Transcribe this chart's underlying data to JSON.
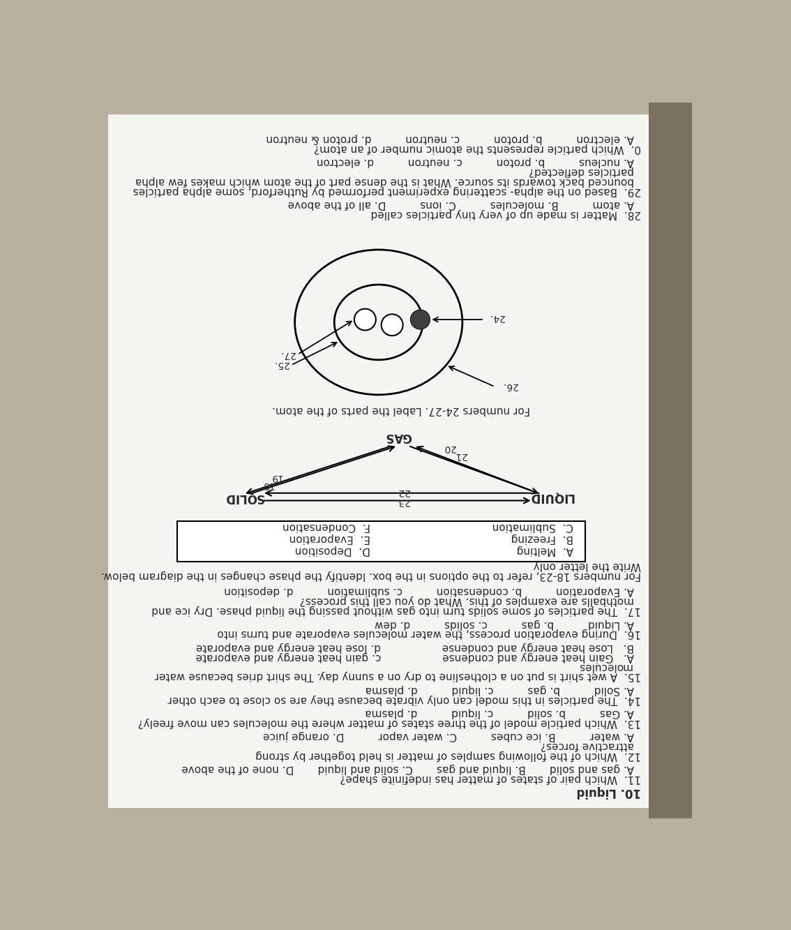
{
  "bg_color": "#b8b0a0",
  "page_color": "#f5f5f3",
  "shadow_color": "#7a7060",
  "text_color": "#2a2a2a",
  "title": "10. Liquid",
  "q11": "11.  Which pair of states of matter has indefinite shape?",
  "q11c": "A. gas and solid       B. liquid and gas       C. solid and liquid       D. none of the above",
  "q12a": "12.  Which of the following samples of matter is held together by strong",
  "q12b": "attractive forces?",
  "q12c": "A. water          B. ice cubes          C. water vapor          D. orange juice",
  "q13": "13.  Which particle model of the three states of matter where the molecules can move freely?",
  "q13c": "A. Gas          b. solid          c. liquid          d. plasma",
  "q14": "14.  The particles in this model can only vibrate because they are so close to each other",
  "q14c": "A. Solid          b. gas          c. liquid          d. plasma",
  "q15a": "15.  A wet shirt is put on a clothesline to dry on a sunny day. The shirt dries because water",
  "q15b": "molecules",
  "q15c1": "A.   Gain heat energy and condense                  c. gain heat energy and evaporate",
  "q15c2": "B.   Lose heat energy and condense                  d. lose heat energy and evaporate",
  "q16": "16.  During evaporation process, the water molecules evaporate and turns into",
  "q16c": "A. Liquid          b. gas          c. solids          d. dew",
  "q17a": "17.  The particles of some solids turn into gas without passing the liquid phase. Dry ice and",
  "q17b": "mothballs are examples of this. What do you call this process?",
  "q17c": "A. Evaporation          b. condensation          c. sublimation          d. deposition",
  "for1823a": "For numbers 18-23, refer to the options in the box. Identify the phase changes in the diagram below.",
  "for1823b": "Write the letter only",
  "box": [
    [
      "A.  Melting",
      "D.  Deposition"
    ],
    [
      "B.  Freezing",
      "E.  Evaporation"
    ],
    [
      "C.  Sublimation",
      "F.  Condensation"
    ]
  ],
  "for2427": "For numbers 24-27. Label the parts of the atom.",
  "q28": "28.  Matter is made up of very tiny particles called",
  "q28c": "A. atom          B. molecules          C. ions          D. all of the above",
  "q29a": "29.  Based on the alpha- scattering experiment performed by Rutherford, some alpha particles",
  "q29b": "bounced back towards its source. What is the dense part of the atom which makes few alpha",
  "q29c_text": "particles deflected?",
  "q29c": "A. nucleus          b. proton          c. neutron          d. electron",
  "q30": "0.  Which particle represents the atomic number of an atom?",
  "q30c": "A. electron          b. proton          c. neutron          d. proton & neutron"
}
